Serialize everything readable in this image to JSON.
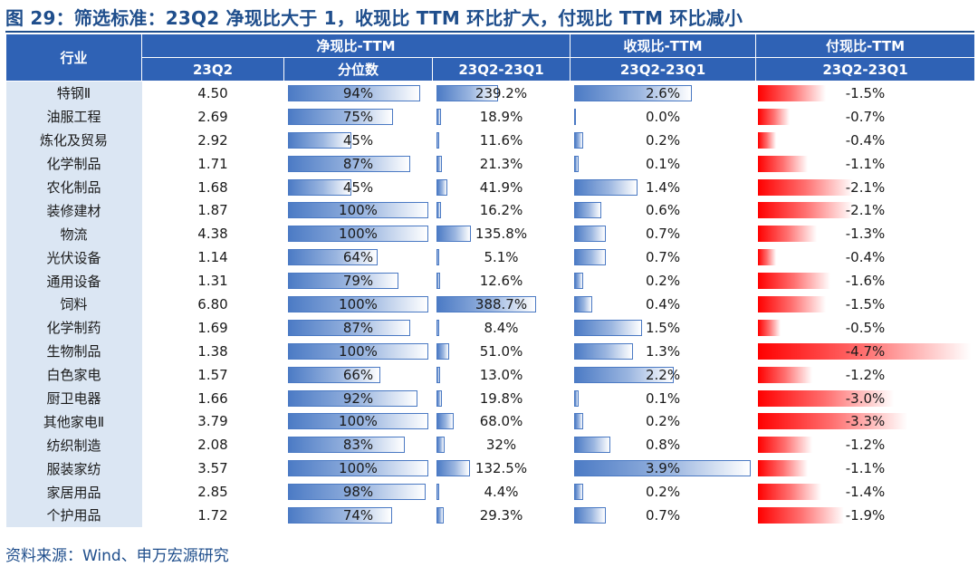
{
  "title": "图 29：筛选标准：23Q2 净现比大于 1，收现比 TTM 环比扩大，付现比 TTM 环比减小",
  "source": "资料来源：Wind、申万宏源研究",
  "header": {
    "industry": "行业",
    "group_jxb": "净现比-TTM",
    "group_sxb": "收现比-TTM",
    "group_fxb": "付现比-TTM",
    "col_23q2": "23Q2",
    "col_pct": "分位数",
    "col_chg1": "23Q2-23Q1",
    "col_chg2": "23Q2-23Q1",
    "col_chg3": "23Q2-23Q1"
  },
  "colors": {
    "header_bg": "#2f62b5",
    "industry_bg": "#dbe6f3",
    "blue_bar": "#4c7bc5",
    "red_bar": "#ff0000",
    "title": "#1f4e8c"
  },
  "rows": [
    {
      "name": "特钢Ⅱ",
      "v": "4.50",
      "pct": "94%",
      "pctv": 94,
      "jchg": "239.2%",
      "jchgv": 239.2,
      "schg": "2.6%",
      "schgv": 2.6,
      "fchg": "-1.5%",
      "fchgv": 1.5
    },
    {
      "name": "油服工程",
      "v": "2.69",
      "pct": "75%",
      "pctv": 75,
      "jchg": "18.9%",
      "jchgv": 18.9,
      "schg": "0.0%",
      "schgv": 0.0,
      "fchg": "-0.7%",
      "fchgv": 0.7
    },
    {
      "name": "炼化及贸易",
      "v": "2.92",
      "pct": "45%",
      "pctv": 45,
      "jchg": "11.6%",
      "jchgv": 11.6,
      "schg": "0.2%",
      "schgv": 0.2,
      "fchg": "-0.4%",
      "fchgv": 0.4
    },
    {
      "name": "化学制品",
      "v": "1.71",
      "pct": "87%",
      "pctv": 87,
      "jchg": "21.3%",
      "jchgv": 21.3,
      "schg": "0.1%",
      "schgv": 0.1,
      "fchg": "-1.1%",
      "fchgv": 1.1
    },
    {
      "name": "农化制品",
      "v": "1.68",
      "pct": "45%",
      "pctv": 45,
      "jchg": "41.9%",
      "jchgv": 41.9,
      "schg": "1.4%",
      "schgv": 1.4,
      "fchg": "-2.1%",
      "fchgv": 2.1
    },
    {
      "name": "装修建材",
      "v": "1.87",
      "pct": "100%",
      "pctv": 100,
      "jchg": "16.2%",
      "jchgv": 16.2,
      "schg": "0.6%",
      "schgv": 0.6,
      "fchg": "-2.1%",
      "fchgv": 2.1
    },
    {
      "name": "物流",
      "v": "4.38",
      "pct": "100%",
      "pctv": 100,
      "jchg": "135.8%",
      "jchgv": 135.8,
      "schg": "0.7%",
      "schgv": 0.7,
      "fchg": "-1.3%",
      "fchgv": 1.3
    },
    {
      "name": "光伏设备",
      "v": "1.14",
      "pct": "64%",
      "pctv": 64,
      "jchg": "5.1%",
      "jchgv": 5.1,
      "schg": "0.7%",
      "schgv": 0.7,
      "fchg": "-0.4%",
      "fchgv": 0.4
    },
    {
      "name": "通用设备",
      "v": "1.31",
      "pct": "79%",
      "pctv": 79,
      "jchg": "12.6%",
      "jchgv": 12.6,
      "schg": "0.2%",
      "schgv": 0.2,
      "fchg": "-1.6%",
      "fchgv": 1.6
    },
    {
      "name": "饲料",
      "v": "6.80",
      "pct": "100%",
      "pctv": 100,
      "jchg": "388.7%",
      "jchgv": 388.7,
      "schg": "0.4%",
      "schgv": 0.4,
      "fchg": "-1.5%",
      "fchgv": 1.5
    },
    {
      "name": "化学制药",
      "v": "1.69",
      "pct": "87%",
      "pctv": 87,
      "jchg": "8.4%",
      "jchgv": 8.4,
      "schg": "1.5%",
      "schgv": 1.5,
      "fchg": "-0.5%",
      "fchgv": 0.5
    },
    {
      "name": "生物制品",
      "v": "1.38",
      "pct": "100%",
      "pctv": 100,
      "jchg": "51.0%",
      "jchgv": 51.0,
      "schg": "1.3%",
      "schgv": 1.3,
      "fchg": "-4.7%",
      "fchgv": 4.7
    },
    {
      "name": "白色家电",
      "v": "1.57",
      "pct": "66%",
      "pctv": 66,
      "jchg": "13.0%",
      "jchgv": 13.0,
      "schg": "2.2%",
      "schgv": 2.2,
      "fchg": "-1.2%",
      "fchgv": 1.2
    },
    {
      "name": "厨卫电器",
      "v": "1.66",
      "pct": "92%",
      "pctv": 92,
      "jchg": "19.8%",
      "jchgv": 19.8,
      "schg": "0.1%",
      "schgv": 0.1,
      "fchg": "-3.0%",
      "fchgv": 3.0
    },
    {
      "name": "其他家电Ⅱ",
      "v": "3.79",
      "pct": "100%",
      "pctv": 100,
      "jchg": "68.0%",
      "jchgv": 68.0,
      "schg": "0.2%",
      "schgv": 0.2,
      "fchg": "-3.3%",
      "fchgv": 3.3
    },
    {
      "name": "纺织制造",
      "v": "2.08",
      "pct": "83%",
      "pctv": 83,
      "jchg": "32%",
      "jchgv": 32,
      "schg": "0.8%",
      "schgv": 0.8,
      "fchg": "-1.2%",
      "fchgv": 1.2
    },
    {
      "name": "服装家纺",
      "v": "3.57",
      "pct": "100%",
      "pctv": 100,
      "jchg": "132.5%",
      "jchgv": 132.5,
      "schg": "3.9%",
      "schgv": 3.9,
      "fchg": "-1.1%",
      "fchgv": 1.1
    },
    {
      "name": "家居用品",
      "v": "2.85",
      "pct": "98%",
      "pctv": 98,
      "jchg": "4.4%",
      "jchgv": 4.4,
      "schg": "0.2%",
      "schgv": 0.2,
      "fchg": "-1.4%",
      "fchgv": 1.4
    },
    {
      "name": "个护用品",
      "v": "1.72",
      "pct": "74%",
      "pctv": 74,
      "jchg": "29.3%",
      "jchgv": 29.3,
      "schg": "0.7%",
      "schgv": 0.7,
      "fchg": "-1.9%",
      "fchgv": 1.9
    }
  ]
}
